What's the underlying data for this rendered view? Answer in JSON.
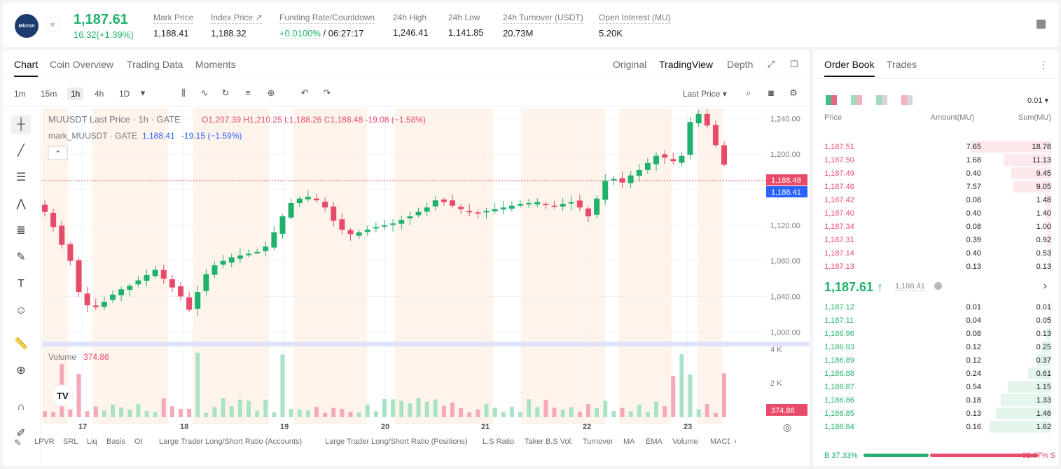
{
  "header": {
    "logo_text": "Micron",
    "last_price": "1,187.61",
    "change": "16.32(+1.39%)",
    "stats": [
      {
        "label": "Mark Price",
        "value": "1,188.41"
      },
      {
        "label": "Index Price ↗",
        "value": "1,188.32"
      },
      {
        "label": "Funding Rate/Countdown",
        "value": "+0.0100%",
        "value2": " / 06:27:17"
      },
      {
        "label": "24h High",
        "value": "1,246.41"
      },
      {
        "label": "24h Low",
        "value": "1,141.85"
      },
      {
        "label": "24h Turnover (USDT)",
        "value": "20.73M"
      },
      {
        "label": "Open Interest (MU)",
        "value": "5.20K"
      }
    ]
  },
  "chart_tabs": {
    "left": [
      "Chart",
      "Coin Overview",
      "Trading Data",
      "Moments"
    ],
    "right": [
      "Original",
      "TradingView",
      "Depth"
    ]
  },
  "toolbar": {
    "intervals": [
      "1m",
      "15m",
      "1h",
      "4h",
      "1D"
    ],
    "price_type": "Last Price ▾"
  },
  "legend": {
    "main": "MUUSDT Last Price · 1h · GATE",
    "ohlc": "O1,207.39 H1,210.25 L1,188.26 C1,188.48 -19.08 (−1.58%)",
    "mark_name": "mark_MUUSDT · GATE",
    "mark_val": "1,188.41",
    "mark_chg": "-19.15 (−1.59%)",
    "volume_label": "Volume",
    "volume_val": "374.86"
  },
  "chart_data": {
    "type": "candlestick",
    "symbol": "MUUSDT",
    "interval": "1h",
    "x_labels": [
      "17",
      "18",
      "19",
      "20",
      "21",
      "22",
      "23"
    ],
    "y_ticks": [
      "1,240.00",
      "1,200.00",
      "1,160.00",
      "1,120.00",
      "1,080.00",
      "1,040.00",
      "1,000.00"
    ],
    "y_range": [
      990,
      1252
    ],
    "volume_ticks": [
      "4 K",
      "2 K"
    ],
    "last_price_tag": "1,188.48",
    "mark_price_tag": "1,188.41",
    "volume_tag": "374.86",
    "close_series": [
      1135,
      1118,
      1098,
      1080,
      1045,
      1030,
      1028,
      1034,
      1042,
      1048,
      1052,
      1058,
      1064,
      1070,
      1060,
      1050,
      1040,
      1025,
      1045,
      1065,
      1075,
      1080,
      1084,
      1086,
      1088,
      1090,
      1096,
      1112,
      1130,
      1145,
      1150,
      1152,
      1148,
      1140,
      1125,
      1115,
      1110,
      1112,
      1115,
      1118,
      1120,
      1122,
      1126,
      1130,
      1135,
      1140,
      1148,
      1146,
      1142,
      1138,
      1135,
      1134,
      1136,
      1138,
      1140,
      1142,
      1144,
      1145,
      1146,
      1144,
      1142,
      1144,
      1146,
      1140,
      1130,
      1150,
      1170,
      1172,
      1168,
      1176,
      1182,
      1190,
      1198,
      1196,
      1192,
      1198,
      1236,
      1245,
      1232,
      1210,
      1188
    ],
    "colors": {
      "up": "#20b26c",
      "down": "#e84b6a"
    }
  },
  "bottom_indicators": [
    "LPVR",
    "SRL",
    "Liq",
    "Basis",
    "OI",
    "Large Trader Long/Short Ratio (Accounts)",
    "Large Trader Long/Short Ratio (Positions)",
    "L.S Ratio",
    "Taker B.S Vol.",
    "Turnover",
    "MA",
    "EMA",
    "Volume",
    "MACD"
  ],
  "orderbook": {
    "tabs": [
      "Order Book",
      "Trades"
    ],
    "step": "0.01 ▾",
    "headers": [
      "Price",
      "Amount(MU)",
      "Sum(MU)"
    ],
    "asks": [
      {
        "price": "1,187.51",
        "amount": "7.65",
        "sum": "18.78",
        "amount_frac": 0.0,
        "sum_frac": 1.0
      },
      {
        "price": "1,187.50",
        "amount": "1.68",
        "sum": "11.13",
        "amount_frac": 0.0,
        "sum_frac": 0.59
      },
      {
        "price": "1,187.49",
        "amount": "0.40",
        "sum": "9.45",
        "amount_frac": 0.0,
        "sum_frac": 0.5
      },
      {
        "price": "1,187.46",
        "amount": "7.57",
        "sum": "9.05",
        "amount_frac": 0.0,
        "sum_frac": 0.48
      },
      {
        "price": "1,187.42",
        "amount": "0.08",
        "sum": "1.48",
        "amount_frac": 0.0,
        "sum_frac": 0.08
      },
      {
        "price": "1,187.40",
        "amount": "0.40",
        "sum": "1.40",
        "amount_frac": 0.0,
        "sum_frac": 0.07
      },
      {
        "price": "1,187.34",
        "amount": "0.08",
        "sum": "1.00",
        "amount_frac": 0.0,
        "sum_frac": 0.05
      },
      {
        "price": "1,187.31",
        "amount": "0.39",
        "sum": "0.92",
        "amount_frac": 0.0,
        "sum_frac": 0.05
      },
      {
        "price": "1,187.14",
        "amount": "0.40",
        "sum": "0.53",
        "amount_frac": 0.0,
        "sum_frac": 0.03
      },
      {
        "price": "1,187.13",
        "amount": "0.13",
        "sum": "0.13",
        "amount_frac": 0.0,
        "sum_frac": 0.01
      }
    ],
    "mid_price": "1,187.61 ↑",
    "mid_mark": "1,188.41",
    "bids": [
      {
        "price": "1,187.12",
        "amount": "0.01",
        "sum": "0.01",
        "sum_frac": 0.01
      },
      {
        "price": "1,187.11",
        "amount": "0.04",
        "sum": "0.05",
        "sum_frac": 0.03
      },
      {
        "price": "1,186.96",
        "amount": "0.08",
        "sum": "0.13",
        "sum_frac": 0.08
      },
      {
        "price": "1,186.93",
        "amount": "0.12",
        "sum": "0.25",
        "sum_frac": 0.15
      },
      {
        "price": "1,186.89",
        "amount": "0.12",
        "sum": "0.37",
        "sum_frac": 0.23
      },
      {
        "price": "1,186.88",
        "amount": "0.24",
        "sum": "0.61",
        "sum_frac": 0.38
      },
      {
        "price": "1,186.87",
        "amount": "0.54",
        "sum": "1.15",
        "sum_frac": 0.71
      },
      {
        "price": "1,186.86",
        "amount": "0.18",
        "sum": "1.33",
        "sum_frac": 0.82
      },
      {
        "price": "1,186.85",
        "amount": "0.13",
        "sum": "1.46",
        "sum_frac": 0.9
      },
      {
        "price": "1,186.84",
        "amount": "0.16",
        "sum": "1.62",
        "sum_frac": 1.0
      }
    ],
    "buy_label": "B 37.33%",
    "sell_label": "62.67% S",
    "buy_frac": 0.3733
  }
}
